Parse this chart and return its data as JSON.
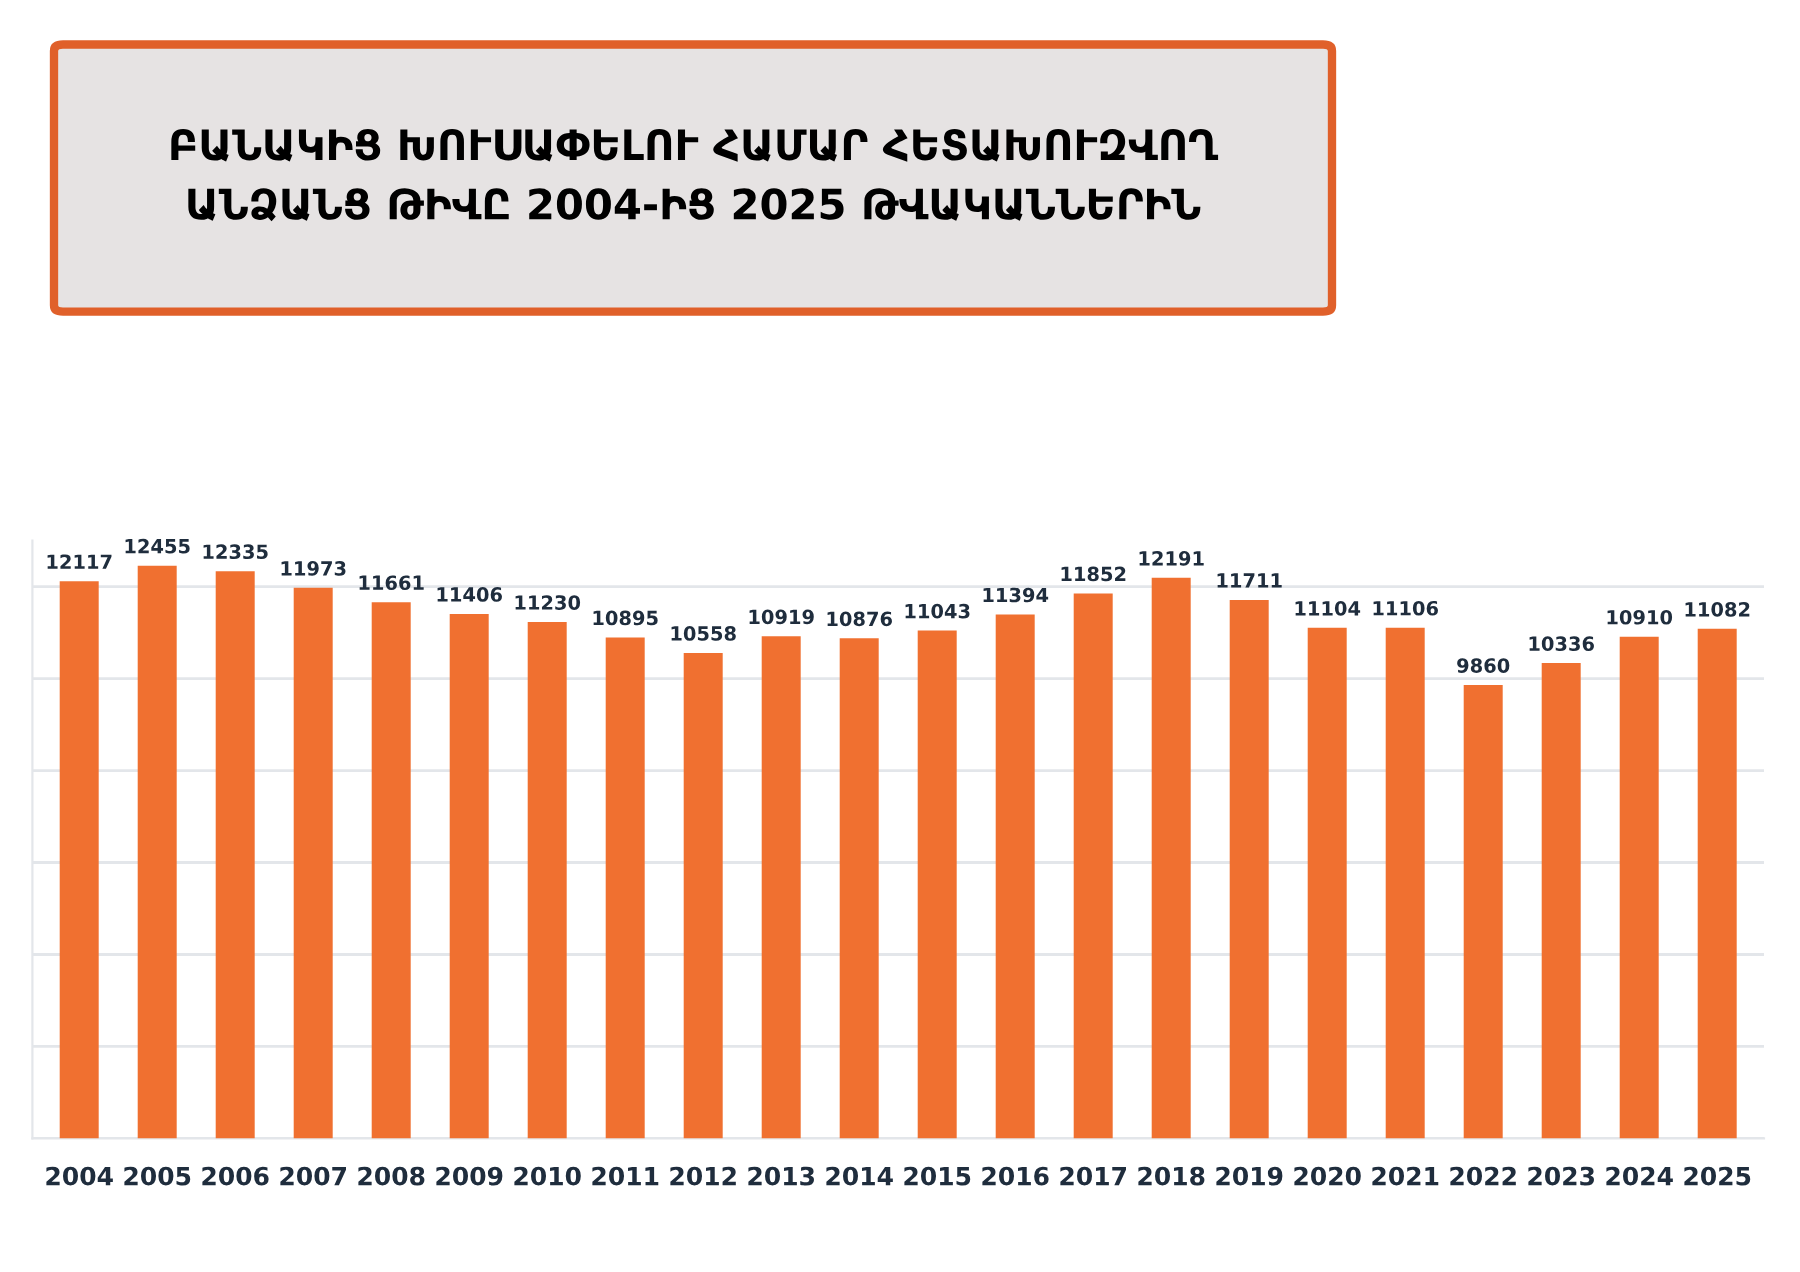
{
  "chart_data": {
    "type": "bar",
    "title": "ԲԱՆԱԿԻՑ ԽՈՒՍԱՓԵԼՈՒ ՀԱՄԱՐ ՀԵՏԱԽՈՒԶՎՈՂ\nԱՆՁԱՆՑ ԹԻՎԸ 2004-ԻՑ 2025 ԹՎԱԿԱՆՆԵՐԻՆ",
    "categories": [
      "2004",
      "2005",
      "2006",
      "2007",
      "2008",
      "2009",
      "2010",
      "2011",
      "2012",
      "2013",
      "2014",
      "2015",
      "2016",
      "2017",
      "2018",
      "2019",
      "2020",
      "2021",
      "2022",
      "2023",
      "2024",
      "2025"
    ],
    "values": [
      12117,
      12455,
      12335,
      11973,
      11661,
      11406,
      11230,
      10895,
      10558,
      10919,
      10876,
      11043,
      11394,
      11852,
      12191,
      11711,
      11104,
      11106,
      9860,
      10336,
      10910,
      11082
    ],
    "color": "#f07030",
    "ylim": [
      0,
      13000
    ],
    "yticks": [
      {
        "value": 0,
        "label": null
      },
      {
        "value": 2000,
        "label": null
      },
      {
        "value": 4000,
        "label": null
      },
      {
        "value": 6000,
        "label": null
      },
      {
        "value": 8000,
        "label": null
      },
      {
        "value": 10000,
        "label": null
      },
      {
        "value": 12000,
        "label": null
      }
    ],
    "tick_labels": "x",
    "grid": "y",
    "data_labels": true
  }
}
